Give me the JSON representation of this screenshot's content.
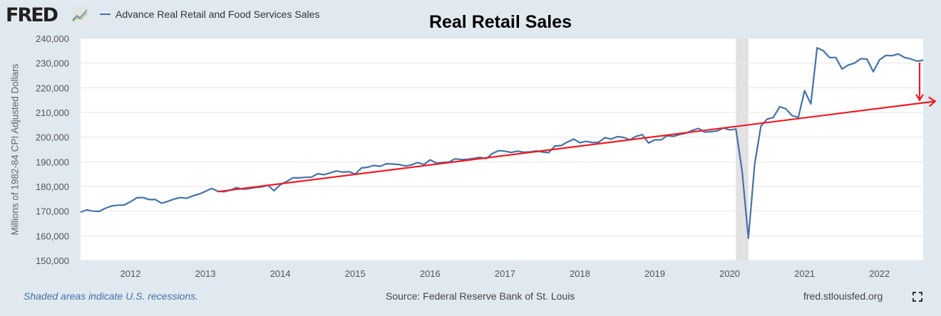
{
  "header": {
    "logo_text": "FRED",
    "legend_label": "Advance Real Retail and Food Services Sales"
  },
  "footer": {
    "recession_note": "Shaded areas indicate U.S. recessions.",
    "source": "Source: Federal Reserve Bank of St. Louis",
    "url": "fred.stlouisfed.org"
  },
  "colors": {
    "series": "#4572a7",
    "annotation": "#ee1c25",
    "recession": "#e1e1e1",
    "background": "#e1e9f0"
  },
  "chart_data": {
    "type": "line",
    "title": "Real Retail Sales",
    "ylabel": "Millions of 1982-84 CPI Adjusted Dollars",
    "xlabel": "",
    "ylim": [
      150000,
      240000
    ],
    "yticks": [
      "150,000",
      "160,000",
      "170,000",
      "180,000",
      "190,000",
      "200,000",
      "210,000",
      "220,000",
      "230,000",
      "240,000"
    ],
    "xticks": [
      "2012",
      "2013",
      "2014",
      "2015",
      "2016",
      "2017",
      "2018",
      "2019",
      "2020",
      "2021",
      "2022"
    ],
    "x_start": "2011-05",
    "x_end": "2022-08",
    "frequency": "monthly",
    "grid": true,
    "recessions": [
      {
        "start": "2020-02",
        "end": "2020-04"
      }
    ],
    "series": [
      {
        "name": "Advance Real Retail and Food Services Sales",
        "values": [
          169600,
          170500,
          170000,
          169900,
          171200,
          172100,
          172400,
          172500,
          173800,
          175400,
          175500,
          174700,
          174700,
          173200,
          174000,
          174900,
          175500,
          175200,
          176200,
          176900,
          178000,
          179200,
          178000,
          177900,
          178500,
          179500,
          178900,
          179100,
          179600,
          179800,
          180500,
          178300,
          180700,
          182000,
          183500,
          183500,
          183700,
          183800,
          185200,
          184800,
          185500,
          186300,
          185800,
          186000,
          185000,
          187500,
          187800,
          188500,
          188200,
          189200,
          189100,
          188900,
          188300,
          188700,
          189700,
          188900,
          190800,
          189500,
          189700,
          189900,
          191200,
          190900,
          191000,
          191400,
          191800,
          191300,
          193400,
          194500,
          194300,
          193800,
          194300,
          193900,
          194000,
          194400,
          194000,
          193700,
          196400,
          196600,
          198000,
          199200,
          197700,
          198300,
          197800,
          197900,
          199800,
          199200,
          200200,
          199900,
          198900,
          200300,
          201000,
          197600,
          198900,
          198900,
          200600,
          200300,
          201100,
          201600,
          202700,
          203500,
          202000,
          202200,
          202500,
          203700,
          202900,
          203300,
          186000,
          159000,
          189000,
          204500,
          207300,
          208000,
          212300,
          211500,
          208700,
          208000,
          218800,
          213500,
          236200,
          235000,
          232200,
          232300,
          227600,
          229200,
          230000,
          231800,
          231600,
          226500,
          231300,
          233100,
          233000,
          233700,
          232300,
          231700,
          230800,
          231200
        ]
      }
    ],
    "annotations": [
      {
        "type": "trend-arrow",
        "from": {
          "x": "2013-03",
          "y": 177900
        },
        "to": {
          "x": "2022-09",
          "y": 214500
        }
      },
      {
        "type": "gap-arrow",
        "x": "2022-08",
        "from_y": 230300,
        "to_y": 215000
      }
    ]
  }
}
